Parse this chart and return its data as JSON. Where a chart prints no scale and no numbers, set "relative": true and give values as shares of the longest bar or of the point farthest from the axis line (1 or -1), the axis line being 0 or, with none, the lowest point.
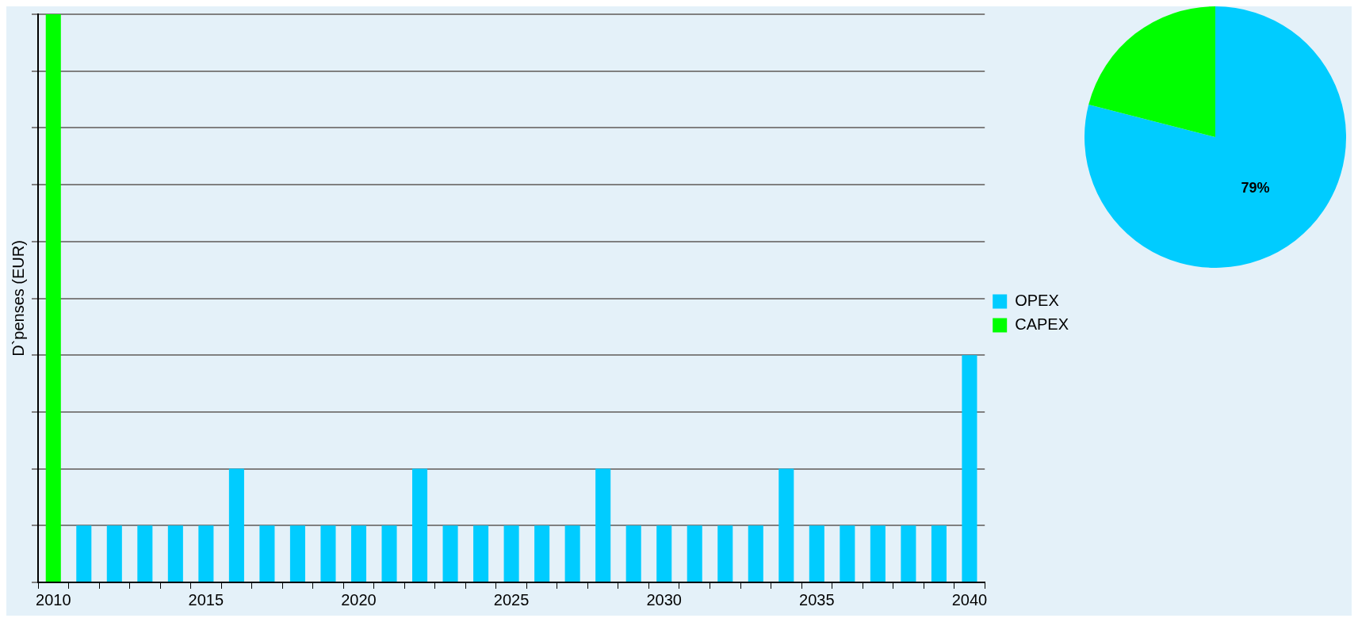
{
  "chart_data": [
    {
      "type": "bar",
      "ylabel": "D`penses (EUR)",
      "relative": true,
      "grid": "y",
      "legend": "right",
      "categories": [
        "2010",
        null,
        null,
        null,
        null,
        "2015",
        null,
        null,
        null,
        null,
        "2020",
        null,
        null,
        null,
        null,
        "2025",
        null,
        null,
        null,
        null,
        "2030",
        null,
        null,
        null,
        null,
        "2035",
        null,
        null,
        null,
        null,
        "2040"
      ],
      "series": [
        {
          "name": "OPEX",
          "color": "#00ccff",
          "values": [
            null,
            0.1,
            0.1,
            0.1,
            0.1,
            0.1,
            0.2,
            0.1,
            0.1,
            0.1,
            0.1,
            0.1,
            0.2,
            0.1,
            0.1,
            0.1,
            0.1,
            0.1,
            0.2,
            0.1,
            0.1,
            0.1,
            0.1,
            0.1,
            0.2,
            0.1,
            0.1,
            0.1,
            0.1,
            0.1,
            0.4
          ]
        },
        {
          "name": "CAPEX",
          "color": "#00ff00",
          "values": [
            1,
            null,
            null,
            null,
            null,
            null,
            null,
            null,
            null,
            null,
            null,
            null,
            null,
            null,
            null,
            null,
            null,
            null,
            null,
            null,
            null,
            null,
            null,
            null,
            null,
            null,
            null,
            null,
            null,
            null,
            null
          ]
        }
      ]
    },
    {
      "type": "pie",
      "categories": [
        null,
        null
      ],
      "values": [
        79,
        21
      ],
      "colors": [
        "#00ccff",
        "#00ff00"
      ],
      "value_labels": [
        "79%",
        null
      ],
      "legend": false
    }
  ]
}
